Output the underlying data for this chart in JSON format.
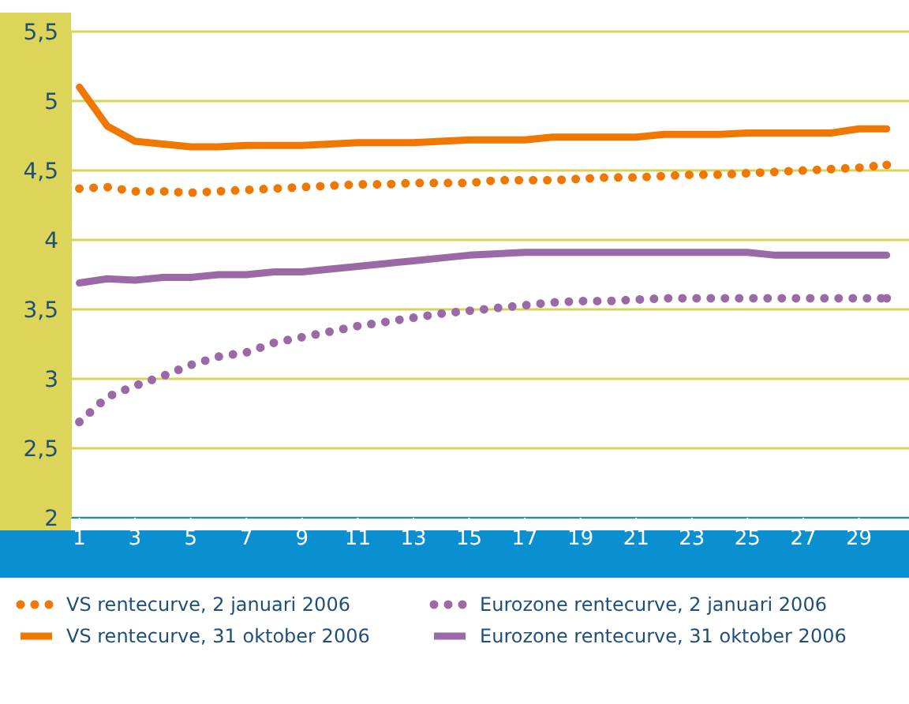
{
  "chart_data": {
    "type": "line",
    "x": [
      1,
      2,
      3,
      4,
      5,
      6,
      7,
      8,
      9,
      10,
      11,
      12,
      13,
      14,
      15,
      16,
      17,
      18,
      19,
      20,
      21,
      22,
      23,
      24,
      25,
      26,
      27,
      28,
      29,
      30
    ],
    "xlim": [
      0.7,
      30.8
    ],
    "xticks": [
      1,
      3,
      5,
      7,
      9,
      11,
      13,
      15,
      17,
      19,
      21,
      23,
      25,
      27,
      29
    ],
    "ylim": [
      2,
      5.5
    ],
    "yticks": [
      2,
      {
        "value": 2.5,
        "label": "2,5"
      },
      3,
      {
        "value": 3.5,
        "label": "3,5"
      },
      4,
      {
        "value": 4.5,
        "label": "4,5"
      },
      5,
      {
        "value": 5.5,
        "label": "5,5"
      }
    ],
    "grid": "y",
    "legend": "bottom",
    "marker": "none",
    "series": [
      {
        "name": "VS rentecurve, 2 januari 2006",
        "color": "#f07800",
        "line_style": "dotted",
        "values": [
          4.37,
          4.38,
          4.35,
          4.35,
          4.34,
          4.35,
          4.36,
          4.37,
          4.38,
          4.39,
          4.4,
          4.4,
          4.41,
          4.41,
          4.41,
          4.43,
          4.43,
          4.43,
          4.44,
          4.45,
          4.45,
          4.46,
          4.47,
          4.47,
          4.48,
          4.49,
          4.5,
          4.51,
          4.52,
          4.54
        ]
      },
      {
        "name": "Eurozone rentecurve, 2 januari 2006",
        "color": "#9b6aa6",
        "line_style": "dotted",
        "values": [
          2.69,
          2.87,
          2.95,
          3.02,
          3.1,
          3.16,
          3.19,
          3.26,
          3.3,
          3.34,
          3.38,
          3.41,
          3.44,
          3.47,
          3.49,
          3.51,
          3.53,
          3.55,
          3.56,
          3.56,
          3.57,
          3.58,
          3.58,
          3.58,
          3.58,
          3.58,
          3.58,
          3.58,
          3.58,
          3.58
        ]
      },
      {
        "name": "VS rentecurve, 31 oktober 2006",
        "color": "#f07800",
        "line_style": "solid",
        "values": [
          5.1,
          4.82,
          4.71,
          4.69,
          4.67,
          4.67,
          4.68,
          4.68,
          4.68,
          4.69,
          4.7,
          4.7,
          4.7,
          4.71,
          4.72,
          4.72,
          4.72,
          4.74,
          4.74,
          4.74,
          4.74,
          4.76,
          4.76,
          4.76,
          4.77,
          4.77,
          4.77,
          4.77,
          4.8,
          4.8
        ]
      },
      {
        "name": "Eurozone rentecurve, 31 oktober 2006",
        "color": "#9b6aa6",
        "line_style": "solid",
        "values": [
          3.69,
          3.72,
          3.71,
          3.73,
          3.73,
          3.75,
          3.75,
          3.77,
          3.77,
          3.79,
          3.81,
          3.83,
          3.85,
          3.87,
          3.89,
          3.9,
          3.91,
          3.91,
          3.91,
          3.91,
          3.91,
          3.91,
          3.91,
          3.91,
          3.91,
          3.89,
          3.89,
          3.89,
          3.89,
          3.89
        ]
      }
    ]
  }
}
